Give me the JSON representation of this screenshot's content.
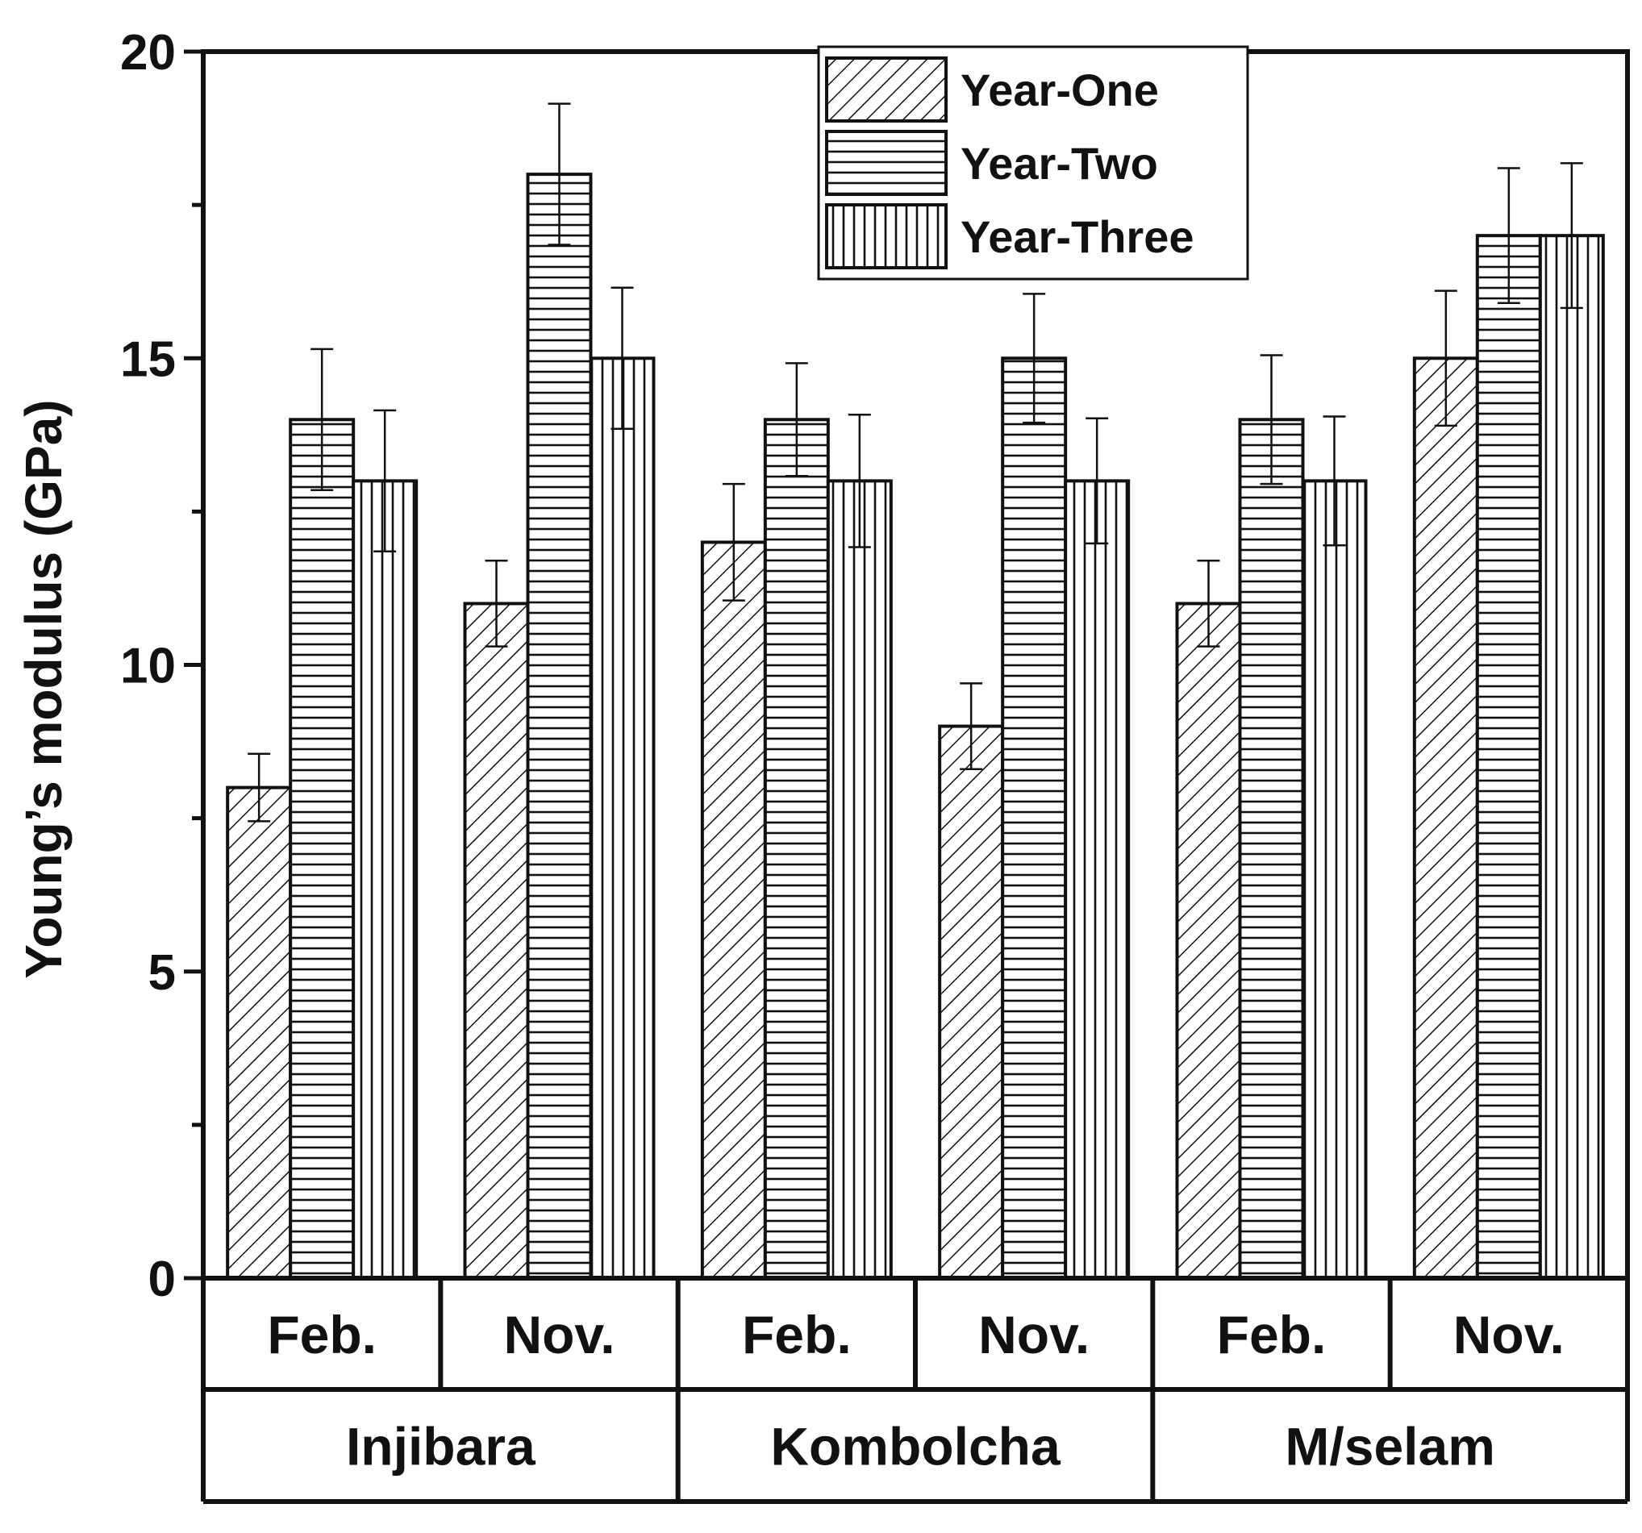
{
  "chart_data": {
    "type": "bar",
    "ylabel": "Young’s modulus (GPa)",
    "ylim": [
      0,
      20
    ],
    "yticks": [
      0,
      5,
      10,
      15,
      20
    ],
    "yticks_labeled": [
      "0",
      "5",
      "10",
      "15",
      "20"
    ],
    "categories": [
      "Feb.",
      "Nov.",
      "Feb.",
      "Nov.",
      "Feb.",
      "Nov."
    ],
    "groups": [
      "Injibara",
      "Kombolcha",
      "M/selam"
    ],
    "series": [
      {
        "name": "Year-One",
        "pattern": "diagonal",
        "values": [
          8,
          11,
          12,
          9,
          11,
          15
        ],
        "errors": [
          0.55,
          0.7,
          0.95,
          0.7,
          0.7,
          1.1
        ]
      },
      {
        "name": "Year-Two",
        "pattern": "horizontal",
        "values": [
          14,
          18,
          14,
          15,
          14,
          17
        ],
        "errors": [
          1.15,
          1.15,
          0.92,
          1.05,
          1.05,
          1.1
        ]
      },
      {
        "name": "Year-Three",
        "pattern": "vertical",
        "values": [
          13,
          15,
          13,
          13,
          13,
          17
        ],
        "errors": [
          1.15,
          1.15,
          1.08,
          1.02,
          1.05,
          1.18
        ]
      }
    ],
    "legend_position": "top-center",
    "colors": {
      "stroke": "#111111",
      "fill": "#ffffff"
    }
  }
}
